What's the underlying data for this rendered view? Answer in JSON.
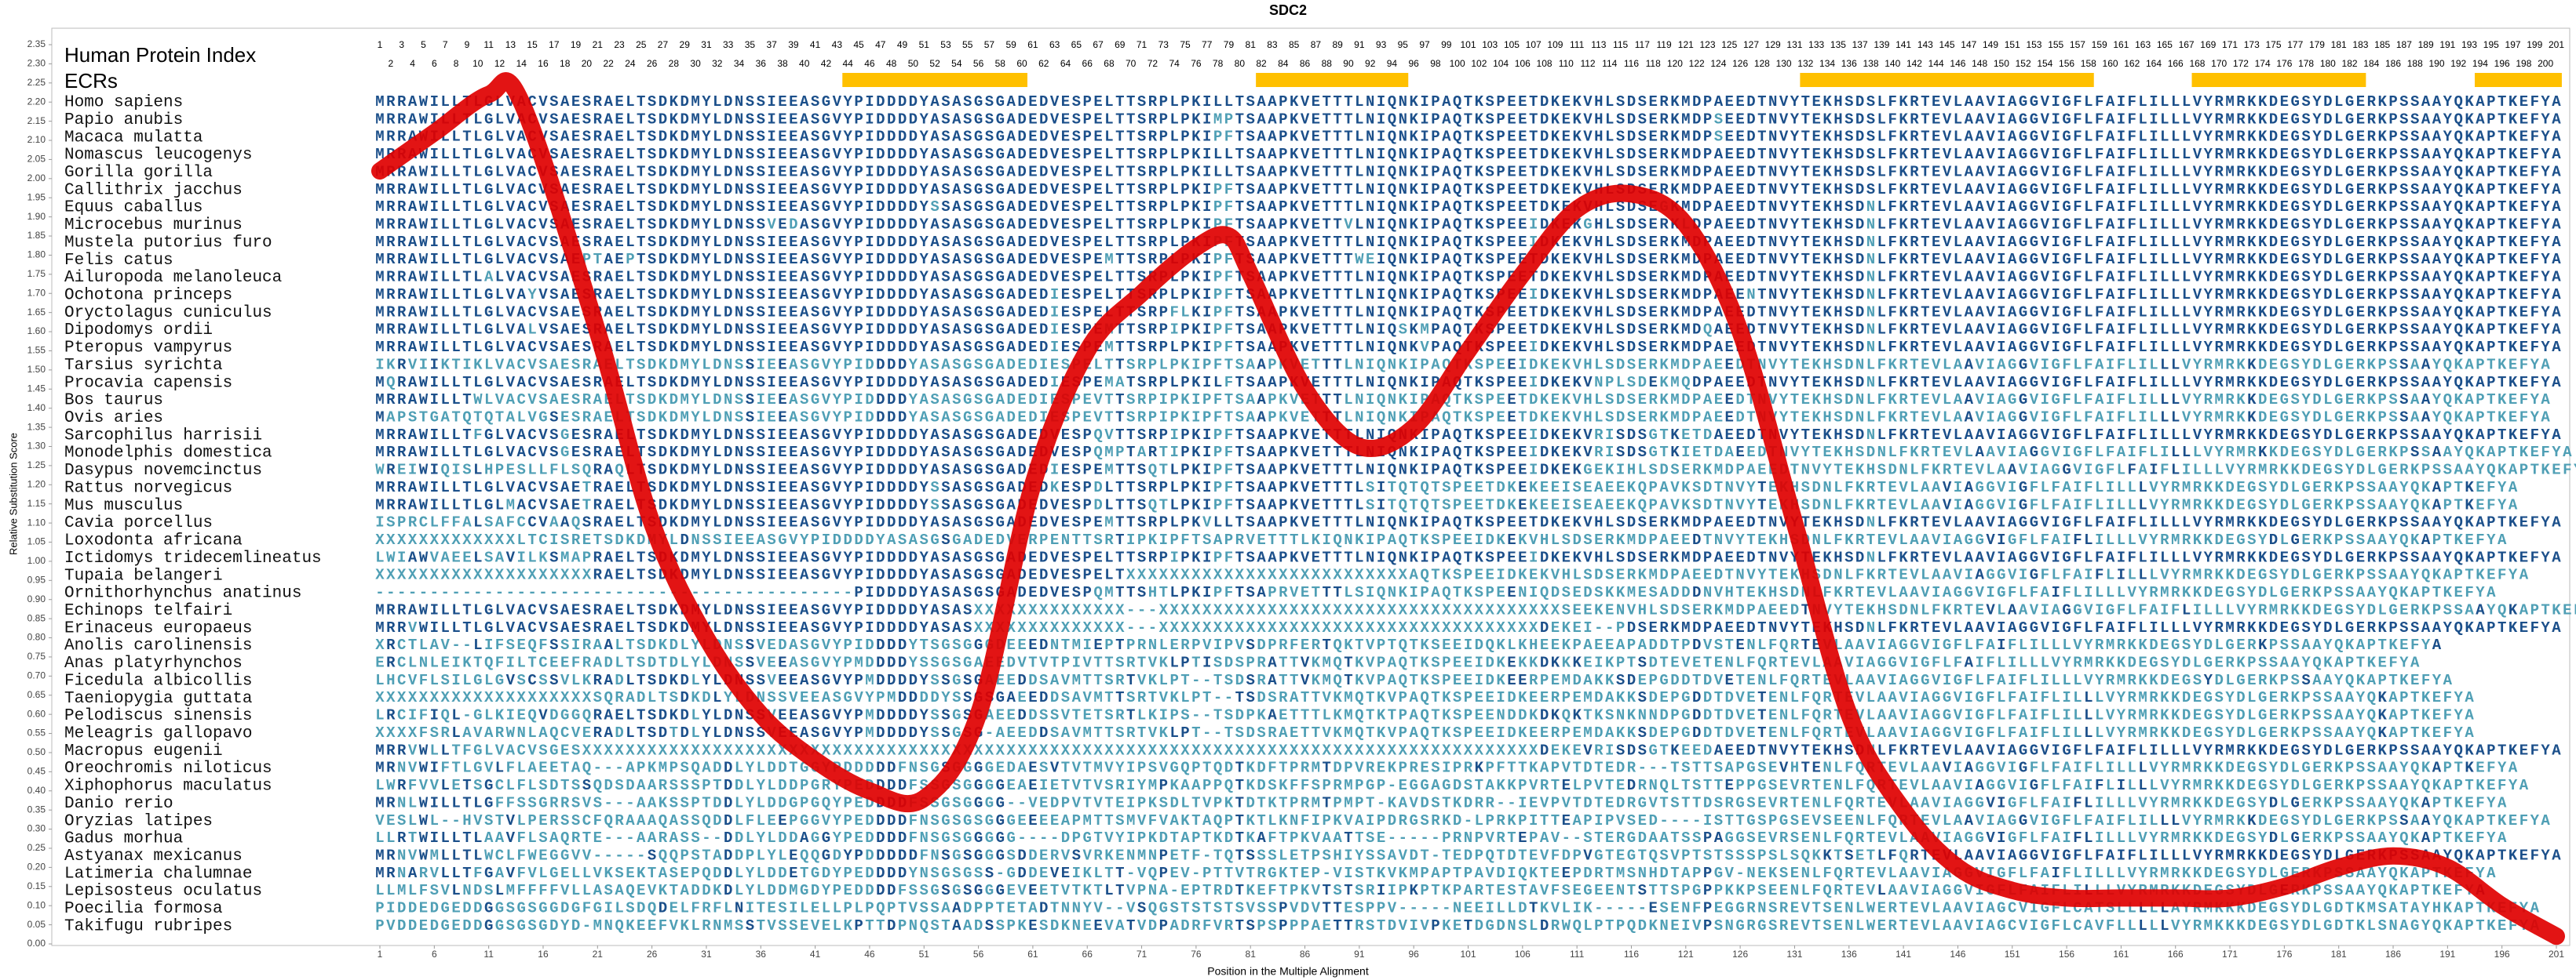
{
  "chart_data": {
    "type": "line",
    "title": "SDC2",
    "y_label": "Relative Substitution Score",
    "x_label": "Position in the Multiple Alignment",
    "index_label": "Human Protein Index",
    "ecr_label": "ECRs",
    "color": "#e00000",
    "match_color": "#1b4f8a",
    "mismatch_color": "#4f9fb5",
    "ecr_color": "#ffc000",
    "xlim": [
      1,
      201
    ],
    "ylim": [
      0,
      2.35
    ],
    "xticks": [
      1,
      6,
      11,
      16,
      21,
      26,
      31,
      36,
      41,
      46,
      51,
      56,
      61,
      66,
      71,
      76,
      81,
      86,
      91,
      96,
      101,
      106,
      111,
      116,
      121,
      126,
      131,
      136,
      141,
      146,
      151,
      156,
      161,
      166,
      171,
      176,
      181,
      186,
      191,
      196,
      201
    ],
    "yticks": [
      {
        "value": 0,
        "label": "0.00"
      },
      0.05,
      {
        "value": 0.1,
        "label": "0.10"
      },
      0.15,
      {
        "value": 0.2,
        "label": "0.20"
      },
      0.25,
      {
        "value": 0.3,
        "label": "0.30"
      },
      0.35,
      {
        "value": 0.4,
        "label": "0.40"
      },
      0.45,
      {
        "value": 0.5,
        "label": "0.50"
      },
      0.55,
      {
        "value": 0.6,
        "label": "0.60"
      },
      0.65,
      {
        "value": 0.7,
        "label": "0.70"
      },
      0.75,
      {
        "value": 0.8,
        "label": "0.80"
      },
      0.85,
      {
        "value": 0.9,
        "label": "0.90"
      },
      0.95,
      {
        "value": 1,
        "label": "1.00"
      },
      1.05,
      {
        "value": 1.1,
        "label": "1.10"
      },
      1.15,
      {
        "value": 1.2,
        "label": "1.20"
      },
      1.25,
      {
        "value": 1.3,
        "label": "1.30"
      },
      1.35,
      {
        "value": 1.4,
        "label": "1.40"
      },
      1.45,
      {
        "value": 1.5,
        "label": "1.50"
      },
      1.55,
      {
        "value": 1.6,
        "label": "1.60"
      },
      1.65,
      {
        "value": 1.7,
        "label": "1.70"
      },
      1.75,
      {
        "value": 1.8,
        "label": "1.80"
      },
      1.85,
      {
        "value": 1.9,
        "label": "1.90"
      },
      1.95,
      {
        "value": 2,
        "label": "2.00"
      },
      2.05,
      {
        "value": 2.1,
        "label": "2.10"
      },
      2.15,
      {
        "value": 2.2,
        "label": "2.20"
      },
      2.25,
      {
        "value": 2.3,
        "label": "2.30"
      },
      2.35
    ],
    "x": [
      1,
      6,
      11,
      14,
      21,
      26,
      31,
      36,
      41,
      46,
      51,
      56,
      61,
      66,
      71,
      76,
      79,
      81,
      86,
      91,
      96,
      101,
      106,
      111,
      116,
      121,
      126,
      131,
      136,
      141,
      146,
      151,
      156,
      161,
      166,
      171,
      176,
      181,
      186,
      191,
      196,
      201
    ],
    "values": [
      2.02,
      2.12,
      2.22,
      2.2,
      1.6,
      1.1,
      0.8,
      0.6,
      0.48,
      0.4,
      0.38,
      0.6,
      1.2,
      1.55,
      1.7,
      1.82,
      1.85,
      1.75,
      1.45,
      1.3,
      1.35,
      1.55,
      1.75,
      1.92,
      1.96,
      1.88,
      1.6,
      1.1,
      0.6,
      0.35,
      0.2,
      0.14,
      0.12,
      0.12,
      0.12,
      0.12,
      0.15,
      0.2,
      0.23,
      0.2,
      0.1,
      0.02
    ],
    "ecrs": [
      [
        44,
        60
      ],
      [
        82,
        95
      ],
      [
        132,
        158
      ],
      [
        168,
        183
      ],
      [
        194,
        201
      ]
    ],
    "index": [
      1,
      2,
      3,
      4,
      5,
      6,
      7,
      8,
      9,
      10,
      11,
      12,
      13,
      14,
      15,
      16,
      17,
      18,
      19,
      20,
      21,
      22,
      23,
      24,
      25,
      26,
      27,
      28,
      29,
      30,
      31,
      32,
      33,
      34,
      35,
      36,
      37,
      38,
      39,
      40,
      41,
      42,
      43,
      44,
      45,
      46,
      47,
      48,
      49,
      50,
      51,
      52,
      53,
      54,
      55,
      56,
      57,
      58,
      59,
      60,
      61,
      62,
      63,
      64,
      65,
      66,
      67,
      68,
      69,
      70,
      71,
      72,
      73,
      74,
      75,
      76,
      77,
      78,
      79,
      80,
      81,
      82,
      83,
      84,
      85,
      86,
      87,
      88,
      89,
      90,
      91,
      92,
      93,
      94,
      95,
      96,
      97,
      98,
      99,
      100,
      101,
      102,
      103,
      104,
      105,
      106,
      107,
      108,
      109,
      110,
      111,
      112,
      113,
      114,
      115,
      116,
      117,
      118,
      119,
      120,
      121,
      122,
      123,
      124,
      125,
      126,
      127,
      128,
      129,
      130,
      131,
      132,
      133,
      134,
      135,
      136,
      137,
      138,
      139,
      140,
      141,
      142,
      143,
      144,
      145,
      146,
      147,
      148,
      149,
      150,
      151,
      152,
      153,
      154,
      155,
      156,
      157,
      158,
      159,
      160,
      161,
      162,
      163,
      164,
      165,
      166,
      167,
      168,
      169,
      170,
      171,
      172,
      173,
      174,
      175,
      176,
      177,
      178,
      179,
      180,
      181,
      182,
      183,
      184,
      185,
      186,
      187,
      188,
      189,
      190,
      191,
      192,
      193,
      194,
      195,
      196,
      197,
      198,
      199,
      200,
      201
    ],
    "species": [
      {
        "name": "Homo sapiens",
        "sequence": "MRRAWILLTLGLVACVSAESRAELTSDKDMYLDNSSIEEASGVYPIDDDDYASASGSGADEDVESPELTTSRPLPKILLTSAAPKVETTTLNIQNKIPAQTKSPEETDKEKVHLSDSERKMDPAEEDTNVYTEKHSDSLFKRTEVLAAVIAGGVIGFLFAIFLILLLVYRMRKKDEGSYDLGERKPSSAAYQKAPTKEFYA"
      },
      {
        "name": "Papio anubis",
        "sequence": "MRRAWILLTLGLVACVSAESRAELTSDKDMYLDNSSIEEASGVYPIDDDDYASASGSGADEDVESPELTTSRPLPKIMPTSAAPKVETTTLNIQNKIPAQTKSPEETDKEKVHLSDSERKMDPSEEDTNVYTEKHSDSLFKRTEVLAAVIAGGVIGFLFAIFLILLLVYRMRKKDEGSYDLGERKPSSAAYQKAPTKEFYA"
      },
      {
        "name": "Macaca mulatta",
        "sequence": "MRRAWILLTLGLVACVSAESRAELTSDKDMYLDNSSIEEASGVYPIDDDDYASASGSGADEDVESPELTTSRPLPKIPFTSAAPKVETTTLNIQNKIPAQTKSPEETDKEKVHLSDSERKMDPSEEDTNVYTEKHSDSLFKRTEVLAAVIAGGVIGFLFAIFLILLLVYRMRKKDEGSYDLGERKPSSAAYQKAPTKEFYA"
      },
      {
        "name": "Nomascus leucogenys",
        "sequence": "MRRAWILLTLGLVACVSAESRAELTSDKDMYLDNSSIEEASGVYPIDDDDYASASGSGADEDVESPELTTSRPLPKILLTSAAPKVETTTLNIQNKIPAQTKSPEETDKEKVHLSDSERKMDPAEEDTNVYTEKHSDSLFKRTEVLAAVIAGGVIGFLFAIFLILLLVYRMRKKDEGSYDLGERKPSSAAYQKAPTKEFYA"
      },
      {
        "name": "Gorilla gorilla",
        "sequence": "MRRAWILLTLGLVACVSAESRAELTSDKDMYLDNSSIEEASGVYPIDDDDYASASGSGADEDVESPELTTSRPLPKILLTSAAPKVETTTLNIQNKIPAQTKSPEETDKEKVHLSDSERKMDPAEEDTNVYTEKHSDSLFKRTEVLAAVIAGGVIGFLFAIFLILLLVYRMRKKDEGSYDLGERKPSSAAYQKAPTKEFYA"
      },
      {
        "name": "Callithrix jacchus",
        "sequence": "MRRAWILLTLGLVACVSAESRAELTSDKDMYLDNSSIEEASGVYPIDDDDYASASGSGADEDVESPELTTSRPLPKIPFTSAAPKVETTTLNIQNKIPAQTKSPEETDKEKVHLSDSERKMDPAEEDTNVYTEKHSDSLFKRTEVLAAVIAGGVIGFLFAIFLILLLVYRMRKKDEGSYDLGERKPSSAAYQKAPTKEFYA"
      },
      {
        "name": "Equus caballus",
        "sequence": "MRRAWILLTLGLVACVSAESRAELTSDKDMYLDNSSIEEASGVYPIDDDDYSSASGSGADEDVESPELTTSRPLPKIPFTSAAPKVETTTLNIQNKIPAQTKSPEETDKEKVHLSDSEGKMDPAEEDTNVYTEKHSDNLFKRTEVLAAVIAGGVIGFLFAIFLILLLVYRMRKKDEGSYDLGERKPSSAAYQKAPTKEFYA"
      },
      {
        "name": "Microcebus murinus",
        "sequence": "MRRAWILLTLGLVACVSAESRAELTSDKDMYLDNSSVEDASGVYPIDDDDYASASGSGADEDVESPELTTSRPLPKIPFTSAAPKVETTVLNIQNKIPAQTKSPEEIDKEKGHLSDSERKLDPAEEDTNVYTEKHSDNLFKRTEVLAAVIAGGVIGFLFAIFLILLLVYRMRKKDEGSYDLGERKPSSAAYQKAPTKEFYA"
      },
      {
        "name": "Mustela putorius furo",
        "sequence": "MRRAWILLTLGLVACVSAESRAELTSDKDMYLDNSSIEEASGVYPIDDDDYASASGSGADEDVESPELTTSRPLPKIPFTSAAPKVETTTLNIQNKIPAQTKSPEEIDKEKVHLSDSERKMDPAEEDTNVYTEKHSDNLFKRTEVLAAVIAGGVIGFLFAIFLILLLVYRMRKKDEGSYDLGERKPSSAAYQKAPTKEFYA"
      },
      {
        "name": "Felis catus",
        "sequence": "MRRAWILLTLGLVACVSAEPTAEPTSDKDMYLDNSSIEEASGVYPIDDDDYASASGSGADEDVESPEMTTSRPLPKIPFTSAAPKVETTTWEIQNKIPAQTKSPEETDKEKVHLSDSERKMDPAEEDTNVYTEKHSDNLFKRTEVLAAVIAGGVIGFLFAIFLILLLVYRMRKKDEGSYDLGERKPSSAAYQKAPTKEFYA"
      },
      {
        "name": "Ailuropoda melanoleuca",
        "sequence": "MRRAWILLTLALVACVSAESRAELTSDKDMYLDNSSIEEASGVYPIDDDDYASASGSGADEDVESPELTTSRPLPKIPFTSAAPKVETTTLNIQNKIPAQTKSPEETDKEKVHLSDSERKMDPAEEDTNVYTEKHSDNLFKRTEVLAAVIAGGVIGFLFAIFLILLLVYRMRKKDEGSYDLGERKPSSAAYQKAPTKEFYA"
      },
      {
        "name": "Ochotona princeps",
        "sequence": "MRRAWILLTLGLVAYVSAESRAELTSDKDMYLDNSSIEEASGVYPIDDDDYASASGSGADEDIESPELTTSRPLPKIPFTSAAPKVETTTLNIQNKIPAQTKSPEEIDKEKVHLSDSERKMDPAEENTNVYTEKHSDNLFKRTEVLAAVIAGGVIGFLFAIFLILLLVYRMRKKDEGSYDLGERKPSSAAYQKAPTKEFYA"
      },
      {
        "name": "Oryctolagus cuniculus",
        "sequence": "MRRAWILLTLGLVACVSAESRAELTSDKDMYLDNSSIEEASGVYPIDDDDYASASGSGADEDIESPELTTSRPFLKIPFTSAAPKVETTTLNIQNKIPAQTKSPEETDKEKVHLSDSERKMDPAEEDTNVYTEKHSDNLFKRTEVLAAVIAGGVIGFLFAIFLILLLVYRMRKKDEGSYDLGERKPSSAAYQKAPTKEFYA"
      },
      {
        "name": "Dipodomys ordii",
        "sequence": "MRRAWILLTLGLVALVSAESRAELTSDKDMYLDNSSIEEASGVYPIDDDDYASASGSGADEDIESPEMTTSRPIPKIPFTSAAPKVETTTLNIQSKMPAQTKSPEETDKEKVHLSDSERKMDQAEEDTNVYTEKHSDNLFKRTEVLAAVIAGGVIGFLFAIFLILLLVYRMRKKDEGSYDLGERKPSSAAYQKAPTKEFYA"
      },
      {
        "name": "Pteropus vampyrus",
        "sequence": "MRRAWILLTLGLVACVSAESRAELTSDKDMYLDNSSIEEASGVYPIDDDDYASASGSGADEDIESPEMTTSRPLPKIPFTSAAPKVETTTLNIQNKVPAQTKSPEEIDKEKVHLSDSERKMDPAEEDTNVYTEKHSDNLFKRTEVLAAVIAGGVIGFLFAIFLILLLVYRMRKKDEGSYDLGERKPSSAAYQKAPTKEFYA"
      },
      {
        "name": "Tarsius syrichta",
        "sequence": "IKRVIIKTIKLVACVSAESRAELTSDKDMYLDNSSIEEASGVYPIDDDDYASASGSGADEDIESPELTTSRPLPKIPFTSAAPKVETTTLNIQNKIPAQTKSPEEIDKEKVHLSDSERKMDPAEEDTNVYTEKHSDNLFKRTEVLAAVIAGGVIGFLFAIFLILLLVYRMRKKDEGSYDLGERKPSSAAYQKAPTKEFYA"
      },
      {
        "name": "Procavia capensis",
        "sequence": "MQRAWILLTLGLVACVSAESRAELTSDKDMYLDNSSIEEASGVYPIDDDDYASASGSGADEDIESPEMATSRPLPKILFTSAAPKVETTTLNIQNKIPAQTKSPEEIDKEKVNPLSDEKMQDPAEEDTNVYTEKHSDNLFKRTEVLAAVIAGGVIGFLFAIFLILLLVYRMRKKDEGSYDLGERKPSSAAYQKAPTKEFYA"
      },
      {
        "name": "Bos taurus",
        "sequence": "MRRAWILLTWLVACVSAESRAELTSDKDMYLDNSSIEEASGVYPIDDDDYASASGSGADEDIESPEVTTSRPIPKIPFTSAAPKVETTTLNIQNKIPAQTKSPEETDKEKVHLSDSERKMDPAEEDTNVYTEKHSDNLFKRTEVLAAVIAGGVIGFLFAIFLILLLVYRMRKKDEGSYDLGERKPSSAAYQKAPTKEFYA"
      },
      {
        "name": "Ovis aries",
        "sequence": "MAPSTGATQTQTALVGSESRAELTSDKDMYLDNSSIEEASGVYPIDDDDYASASGSGADEDIESPEVTTSRPIPKIPFTSAAPKVETTTLNIQNKIPAQTKSPEETDKEKVHLSDSERKMDPAEEDTNVYTEKHSDNLFKRTEVLAAVIAGGVIGFLFAIFLILLLVYRMRKKDEGSYDLGERKPSSAAYQKAPTKEFYA"
      },
      {
        "name": "Sarcophilus harrisii",
        "sequence": "MRRAWILLTFGLVACVSGESRAELTSDKDMYLDNSSIEEASGVYPIDDDDYASASGSGADEDVESPQVTTSRPIPKIPFTSAAPKVETTTLNIQNKIPAQTKSPEEIDKEKVRISDSGTKETDAEEDTNVYTEKHSDNLFKRTEVLAAVIAGGVIGFLFAIFLILLLVYRMRKKDEGSYDLGERKPSSAAYQKAPTKEFYA"
      },
      {
        "name": "Monodelphis domestica",
        "sequence": "MRRAWILLTLGLVACVSGESRAELTSDKDMYLDNSSIEEASGVYPIDDDDYASASGSGADEDVESPQMPTARTIPKIPFTSAAPKVETTTLNIQNKIPAQTKSPEEIDKEKVRISDSGTKIETDAEEDTNVYTEKHSDNLFKRTEVLAAVIAGGVIGFLFAIFLILLLVYRMRKKDEGSYDLGERKPSSAAYQKAPTKEFYA"
      },
      {
        "name": "Dasypus novemcinctus",
        "sequence": "WREIWIQISLHPESLLFLSQRAQLTSDKDMYLDNSSIEEASGVYPIDDDDYASASGSGADEDIESPEMTTSQTLPKIPFTSAAPKVETTTLNIQNKIPAQTKSPEEIDKEKGEKIHLSDSERKMDPAEEDTNVYTEKHSDNLFKRTEVLAAVIAGGVIGFLFAIFLILLLVYRMRKKDEGSYDLGERKPSSAAYQKAPTKEFYA"
      },
      {
        "name": "Rattus norvegicus",
        "sequence": "MRRAWILLTLGLVACVSAETRAELTSDKDMYLDNSSIEEASGVYPIDDDDYSSASGSGADEDKESPDLTTSRPLPKIPFTSAAPKVETTTLSITQTQTSPEETDKEKEEISEAEEKQPAVKSDTNVYTEKHSDNLFKRTEVLAAVIAGGVIGFLFAIFLILLLVYRMRKKDEGSYDLGERKPSSAAYQKAPTKEFYA"
      },
      {
        "name": "Mus musculus",
        "sequence": "MRRAWILLTLGLMACVSAETRAELTSDKDMYLDNSSIEEASGVYPIDDDDYSSASGSGADEDVESPDLTTSQTLPKIPFTSAAPKVETTTLSITQTQTSPEETDKEKEEISEAEEKQPAVKSDTNVYTEKHSDNLFKRTEVLAAVIAGGVIGFLFAIFLILLLVYRMRKKDEGSYDLGERKPSSAAYQKAPTKEFYA"
      },
      {
        "name": "Cavia porcellus",
        "sequence": "ISPRCLFFALSAFCCVAAQSRAELTSDKDMYLDNSSIEEASGVYPIDDDDYASASGSGADEDVESPEMTTSRPLPKVLLTSAAPKVETTTLNIQNKIPAQTKSPEETDKEKVHLSDSERKMDPAEEDTNVYTEKHSDNLFKRTEVLAAVIAGGVIGFLFAIFLILLLVYRMRKKDEGSYDLGERKPSSAAYQKAPTKEFYA"
      },
      {
        "name": "Loxodonta africana",
        "sequence": "XXXXXXXXXXXXXLTCISRETSDKDMYLDNSSIEEASGVYPIDDDDYASASGSGADEDVERPENTTSRTIPKIPFTSAPRVETTTLKIQNKIPAQTKSPEEIDKEKVHLSDSERKMDPAEEDTNVYTEKHSDNLFKRTEVLAAVIAGGVIGFLFAIFLILLLVYRMRKKDEGSYDLGERKPSSAAYQKAPTKEFYA"
      },
      {
        "name": "Ictidomys tridecemlineatus",
        "sequence": "LWIAWVAEELSAVILKSMAPRAELTSDKDMYLDNSSIEEASGVYPIDDDDYASASGSGADEDVESPELTTSRPIPKIPFTSAAPKVETTTLNIQNKIPAQTKSPEEIDKEKVHLSDSERKMDPAEEDTNVYTEKHSDNLFKRTEVLAAVIAGGVIGFLFAIFLILLLVYRMRKKDEGSYDLGERKPSSAAYQKAPTKEFYA"
      },
      {
        "name": "Tupaia belangeri",
        "sequence": "XXXXXXXXXXXXXXXXXXXXRAELTSDKDMYLDNSSIEEASGVYPIDDDDYASASGSGADEDVESPELTXXXXXXXXXXXXXXXXXXXXXXXXXXAQTKSPEEIDKEKVHLSDSERKMDPAEEDTNVYTEKHSDNLFKRTEVLAAVIAGGVIGFLFAIFLILLLVYRMRKKDEGSYDLGERKPSSAAYQKAPTKEFYA"
      },
      {
        "name": "Ornithorhynchus anatinus",
        "sequence": "--------------------------------------------PIDDDDYASASGSGADEDVESPQMTTSHTLPKIPFTSAPRVETTTLSIQNKIPAQTKSPEENIQDSEDSKKMESADDDNVHTEKHSDNLFKRTEVLAAVIAGGVIGFLFAIFLILLLVYRMRKKDEGSYDLGERKPSSAAYQKAPTKEFYA"
      },
      {
        "name": "Echinops telfairi",
        "sequence": "MRRAWILLTLGLVACVSAESRAELTSDKDMYLDNSSIEEASGVYPIDDDDYASASXXXXXXXXXXXXXX---XXXXXXXXXXXXXXXXXXXXXXXXXXXXXXXXXXXXXSEEKENVHLSDSERKMDPAEEDTNVYTEKHSDNLFKRTEVLAAVIAGGVIGFLFAIFLILLLVYRMRKKDEGSYDLGERKPSSAAYQKAPTKEFYA"
      },
      {
        "name": "Erinaceus europaeus",
        "sequence": "MRRVWILLTLGLVACVSAESRAELTSDKDMYLDNSSIEEASGVYPIDDDDYASASXXXXXXXXXXXXXX---XXXXXXXXXXXXXXXXXXXXXXXXXXXXXXXXXXXDEKEI--PDSERKMDPAEEDTNVYTEKHSDNLFKRTEVLAAVIAGGVIGFLFAIFLILLLVYRMRKKDEGSYDLGERKPSSAAYQKAPTKEFYA"
      },
      {
        "name": "Anolis carolinensis",
        "sequence": "XRCTLAV--LIFSEQFSSIRAALTSDKDLYLDNSSVEDASGVYPIDDDDYTSGSGGGDEEEDNTMIEPTPRNLERPVIPVSDPRFERTQKTVPTQTKSEEIDQKLKHEEKPAEEAPADDTPDVSTENLFQRTEVLAAVIAGGVIGFLFAIFLILLLVYRMRKKDEGSYDLGERKPSSAAYQKAPTKEFYA"
      },
      {
        "name": "Anas platyrhynchos",
        "sequence": "ERCLNLEIKTQFILTCEEFRADLTSDTDLYLDNSSVEEASGVYPMDDDDYSSGSGAEEDVTVTPIVTTSRTVKLPTISDSPRATTVKMQTKVPAQTKSPEEIDKEKKDKKKEIKPTSDTEVETENLFQRTEVLAAVIAGGVIGFLFAIFLILLLVYRMRKKDEGSYDLGERKPSSAAYQKAPTKEFYA"
      },
      {
        "name": "Ficedula albicollis",
        "sequence": "LHCVFLSILGLGVSCSSVLKRADLTSDKDLYLDNSSVEEASGVYPMDDDDYSSGSGAEEDDSAVMTTSRTVKLPT--TSDSRATTVKMQTKVPAQTKSPEEIDKEERPEMDAKKSDEPGDDTDVETENLFQRTEVLAAVIAGGVIGFLFAIFLILLLVYRMRKKDEGSYDLGERKPSSAAYQKAPTKEFYA"
      },
      {
        "name": "Taeniopygia guttata",
        "sequence": "XXXXXXXXXXXXXXXXXXXXSQRADLTSDKDLYLDNSSVEEASGVYPMDDDDYSSGSGAEEDDSAVMTTSRTVKLPT--TSDSRATTVKMQTKVPAQTKSPEEIDKEERPEMDAKKSDEPGDDTDVETENLFQRTEVLAAVIAGGVIGFLFAIFLILLLVYRMRKKDEGSYDLGERKPSSAAYQKAPTKEFYA"
      },
      {
        "name": "Pelodiscus sinensis",
        "sequence": "LRCIFIQL-GLKIEQVDGGQRAELTSDKDLYLDNSSVEEASGVYPMDDDDYSSGSGAEEDDSSVTETSRTLKIPS--TSDPKAETTTLKMQTKTPAQTKSPEENDDKDKQKTKSNKNNDPGDDTDVETENLFQRTEVLAAVIAGGVIGFLFAIFLILLLVYRMRKKDEGSYDLGERKPSSAAYQKAPTKEFYA"
      },
      {
        "name": "Meleagris gallopavo",
        "sequence": "XXXXFSRLAVARWNLAQCVERADLTSDTDLYLDNSSVEEASGVYPMDDDDYSSGSG-AEEDDSAVMTTSRTVKLPT--TSDSRAETTVKMQTKVPAQTKSPEEIDKEERPEMDAKKSDEPGDDTDVETENLFQRTEVLAAVIAGGVIGFLFAIFLILLLVYRMRKKDEGSYDLGERKPSSAAYQKAPTKEFYA"
      },
      {
        "name": "Macropus eugenii",
        "sequence": "MRRVWLLTFGLVACVSGESXXXXXXXXXXXXXXXXXXXXXXXXXXXXXXXXXXXXXXXXXXXXXXXXXXXXXXXXXXXXXXXXXXXXXXXXXXXXXXXXXXXXXXXXDEKEVRISDSGTKEEDAEEDTNVYTEKHSDNLFKRTEVLAAVIAGGVIGFLFAIFLILLLVYRMRKKDEGSYDLGERKPSSAAYQKAPTKEFYA"
      },
      {
        "name": "Oreochromis niloticus",
        "sequence": "MRNVWIFTLGVLFLAEETAQ---APKMPSQADDLYLDDTGGYPDDDDDFNSGSGGGGEDAESVTVTMVYIPSVGQPTQDTKDFTPRMTDPVREKPRESIPRKPFTTKAPVTDTEDR---TSTTSAPGSEVHTENLFQRTEVLAAVIAGGVIGFLFAIFLILLLVYRMRKKDEGSYDLGERKPSSAAYQKAPTKEFYA"
      },
      {
        "name": "Xiphophorus maculatus",
        "sequence": "LWRFVVLETSGCLFLSDTSSQDSDAARSSSPTDDLYLDDPGRYPEDDDDFSSGSGGGGEAEIETVTVSRIYMPKAAPPQTKDSKFFSPRMPGP-EGGAGDSTAKKPVRTELPVTEDRNQLTSTTEPPGSEVRTENLFQRTEVLAAVIAGGVIGFLFAIFLILLLVYRMRKKDEGSYDLGERKPSSAAYQKAPTKEFYA"
      },
      {
        "name": "Danio rerio",
        "sequence": "MRNLWILLTLGFFSSGRRSVS---AAKSSPTDDLYLDDGPGQYPEDDDDFSSGSGGGG--VEDPVTVTEIPKSDLTVPKTDTKTPRMTPMPT-KAVDSTKDRR--IEVPVTDTEDRGVTSTTDSRGSEVRTENLFQRTEVLAAVIAGGVIGFLFAIFLILLLVYRMRKKDEGSYDLGERKPSSAAYQKAPTKEFYA"
      },
      {
        "name": "Oryzias latipes",
        "sequence": "VESLWL--HVSTVLPERSSCFQRAAAQASSQDDLFLEEPGGVYPEDDDDFNSGSGSGGGEEEEAPMTTSMVFVAKTAQPTKTLKNFIPKVAIPDRGSRKD-LPRKPITTEAPIPVSED----ISTTGSPGSEVSEENLFQRTEVLAAVIAGGVIGFLFAIFLILLLVYRMRKKDEGSYDLGERKPSSAAYQKAPTKEFYA"
      },
      {
        "name": "Gadus morhua",
        "sequence": "LLRTWILLTLAAVFLSAQRTE---AARASS--DDLYLDDAGGYPEDDDDFNSGSGGGGG----DPGTVYIPKDTAPTKDTKAFTPKVAATTSE-----PRNPVRTEPAV--STERGDAATSSPAGGSEVRSENLFQRTEVLAAVIAGGVIGFLFAIFLILLLVYRMRKKDEGSYDLGERKPSSAAYQKAPTKEFYA"
      },
      {
        "name": "Astyanax mexicanus",
        "sequence": "MRNVWMLLTLWCLFWEGGVV-----SQQPSTADDPLYLEQQGDYPDDDDDFNSGSGGGSDDERVSVRKENMNPETF-TQTSSSLETPSHIYSSAVDT-TEDPQTDTEVFDPVGTEGTQSVPTSTSSSPSLSQKKTSETLFQRTEVLAAVIAGGVIGFLFAIFLILLLVYRMRKKDEGSYDLGERKPSSAAYQKAPTKEFYA"
      },
      {
        "name": "Latimeria chalumnae",
        "sequence": "MRNARVLLTFGAVFVLGELLVKSEKTASEPQDDLYLDDETGDYPEDDDDYNSGSGSS-GDDEVEIKLTT-VQPEV-PTTVTRGKTEP-VISTKVKMPAPTPAVDIQKTEEPDRTMSNHDTAPPGV-NEKSENLFQRTEVLAAVIAGGVIGFLFAIFLILLLVYRMRKKDEGSYDLGERKPSSAAYQKAPTKEFYA"
      },
      {
        "name": "Lepisosteus oculatus",
        "sequence": "LLMLFSVLNDSLMFFFFVLLASAQEVKTADDKDLYLDDMGDYPEDDDDFSSGSGSGGGEVEETVTKTLTVPNA-EPTRDTKEFTPKVTSTSRIIPKPTKPARTESTAVFSEGEENTSTTSPGPPKKPSEENLFQRTEVLAAVIAGGVIGFLFAIFLILLLVYRMRKKDEGSYDLGERKPSSAAYQKAPTKEFYA"
      },
      {
        "name": "Poecilia formosa",
        "sequence": "PIDDEDGEDDGGSGSGGDGFGILSDQDELFRFLNITESILELLPLPQPTVSSAADPPTETADTNNYV--VSQGSTSTSTSVSSPVDVTTESPPV-----NEEILLDTKVLIK-----ESENFPEGGRNSREVTSENLWERTEVLAAVIAGCVIGFLCATSLLLLLAYRMKKKDEGSYDLGDTKMSATAYHKAPTKEFYA"
      },
      {
        "name": "Takifugu rubripes",
        "sequence": "PVDDEDGEDDGGSGSGDYD-MNQKEEFVKLRNMSSTVSSEVELKPTTDPNQSTAADSSPKESDKNEEVATVDPADRFVRTSPSPPPAETTRSTDVIVPKETDGDNSLDRWQLPTPQDKNEIVPSNGRGSREVTSENLWERTEVLAAVIAGCVIGFLCAVFLLLLLVYRMKKKDEGSYDLGDTKLSNAGYQKAPTKEFYA"
      }
    ]
  }
}
